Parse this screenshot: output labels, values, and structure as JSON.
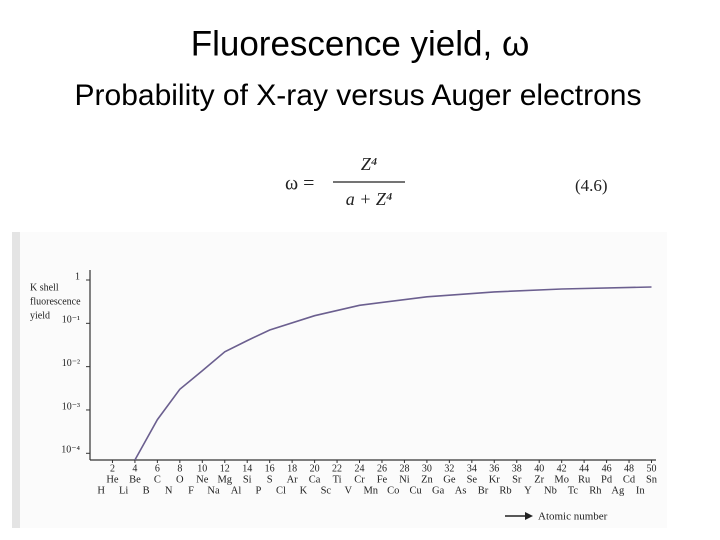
{
  "slide": {
    "title": "Fluorescence yield, ω",
    "subtitle": "Probability of X-ray versus Auger electrons",
    "formula": {
      "lhs": "ω =",
      "numerator": "Z⁴",
      "denominator": "a + Z⁴",
      "number": "(4.6)"
    }
  },
  "chart_data": {
    "type": "line",
    "log_y": true,
    "ylabel_lines": [
      "K shell",
      "fluorescence",
      "yield"
    ],
    "xlabel": "Atomic number",
    "x": [
      4,
      6,
      8,
      10,
      12,
      14,
      16,
      20,
      24,
      30,
      36,
      42,
      50
    ],
    "series": [
      {
        "color": "#6b5f8f",
        "values": [
          7e-05,
          0.0006,
          0.003,
          0.008,
          0.022,
          0.04,
          0.07,
          0.15,
          0.26,
          0.41,
          0.53,
          0.62,
          0.69
        ]
      }
    ],
    "xlim": [
      0,
      50
    ],
    "ylim": [
      7e-05,
      1
    ],
    "xticks": [
      2,
      4,
      6,
      8,
      10,
      12,
      14,
      16,
      18,
      20,
      22,
      24,
      26,
      28,
      30,
      32,
      34,
      36,
      38,
      40,
      42,
      44,
      46,
      48,
      50
    ],
    "yticks": [
      1,
      {
        "value": 0.1,
        "label": "10⁻¹"
      },
      {
        "value": 0.01,
        "label": "10⁻²"
      },
      {
        "value": 0.001,
        "label": "10⁻³"
      },
      {
        "value": 0.0001,
        "label": "10⁻⁴"
      }
    ],
    "even_elements": [
      "He",
      "Be",
      "C",
      "O",
      "Ne",
      "Mg",
      "Si",
      "S",
      "Ar",
      "Ca",
      "Ti",
      "Cr",
      "Fe",
      "Ni",
      "Zn",
      "Ge",
      "Se",
      "Kr",
      "Sr",
      "Zr",
      "Mo",
      "Ru",
      "Pd",
      "Cd",
      "Sn"
    ],
    "odd_elements": [
      "H",
      "Li",
      "B",
      "N",
      "F",
      "Na",
      "Al",
      "P",
      "Cl",
      "K",
      "Sc",
      "V",
      "Mn",
      "Co",
      "Cu",
      "Ga",
      "As",
      "Br",
      "Rb",
      "Y",
      "Nb",
      "Tc",
      "Rh",
      "Ag",
      "In"
    ]
  }
}
